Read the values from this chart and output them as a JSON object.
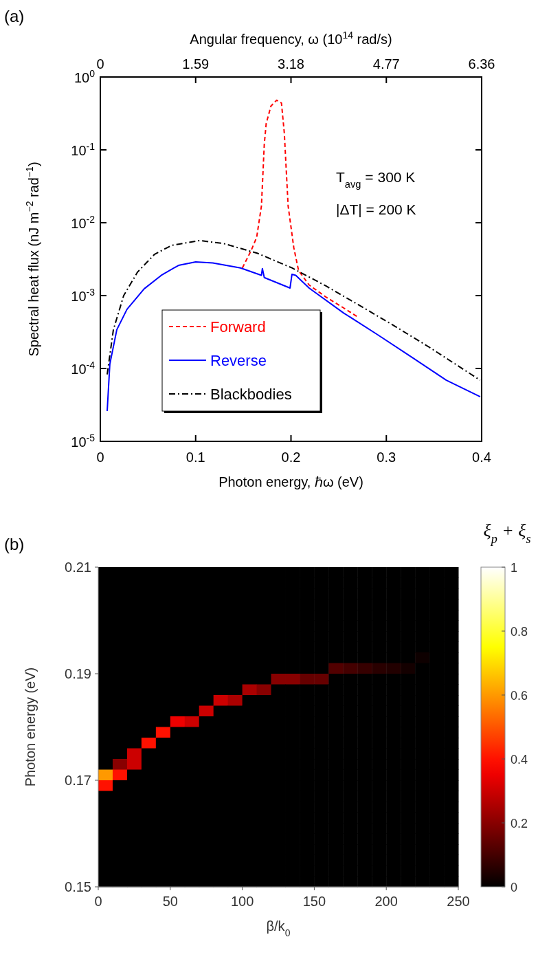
{
  "chart_data": [
    {
      "type": "line",
      "log": "y",
      "xlim": [
        0,
        0.4
      ],
      "xticks": [
        0,
        0.1,
        0.2,
        0.3,
        0.4
      ],
      "x2lim": [
        0,
        6.36
      ],
      "x2ticks": [
        0,
        1.59,
        3.18,
        4.77,
        6.36
      ],
      "ylim": [
        1e-05,
        1
      ],
      "yticks": [
        {
          "value": 1e-05,
          "label": "10$^{-5}$"
        },
        {
          "value": 0.0001,
          "label": "10$^{-4}$"
        },
        {
          "value": 0.001,
          "label": "10$^{-3}$"
        },
        {
          "value": 0.01,
          "label": "10$^{-2}$"
        },
        {
          "value": 0.1,
          "label": "10$^{-1}$"
        },
        {
          "value": 1,
          "label": "10$^{0}$"
        }
      ],
      "xlabel": "Photon energy, ℏω (eV)",
      "x2label": "Angular frequency, ω (10$^{14}$ rad/s)",
      "ylabel": "Spectral heat flux (nJ m$^{−2}$ rad$^{−1}$)",
      "legend": "bottom left",
      "annotations": [
        "(a)",
        "T$_{avg}$ = 300 K",
        "|ΔT| = 200 K"
      ],
      "series": [
        {
          "name": "Forward",
          "color": "#ff0000",
          "line_style": "dashed",
          "x": [
            0.149,
            0.158,
            0.164,
            0.169,
            0.172,
            0.174,
            0.179,
            0.185,
            0.19,
            0.193,
            0.197,
            0.203,
            0.208,
            0.219,
            0.237,
            0.255,
            0.27
          ],
          "values": [
            0.0024,
            0.0041,
            0.0063,
            0.017,
            0.12,
            0.23,
            0.4,
            0.48,
            0.44,
            0.17,
            0.017,
            0.0045,
            0.0022,
            0.0014,
            0.00095,
            0.00068,
            0.00051
          ]
        },
        {
          "name": "Reverse",
          "color": "#0000ff",
          "line_style": "solid",
          "x": [
            0.0072,
            0.01,
            0.0173,
            0.028,
            0.046,
            0.064,
            0.082,
            0.1,
            0.118,
            0.147,
            0.169,
            0.17,
            0.172,
            0.199,
            0.201,
            0.205,
            0.219,
            0.255,
            0.291,
            0.327,
            0.363,
            0.3985
          ],
          "values": [
            2.6e-05,
            0.000115,
            0.00034,
            0.00065,
            0.00124,
            0.0019,
            0.0026,
            0.0029,
            0.0028,
            0.0024,
            0.0019,
            0.00235,
            0.00177,
            0.00127,
            0.00196,
            0.0019,
            0.00127,
            0.00058,
            0.00029,
            0.000142,
            6.9e-05,
            4.1e-05
          ]
        },
        {
          "name": "Blackbodies",
          "color": "#000000",
          "line_style": "dashdot",
          "x": [
            0.0072,
            0.0137,
            0.0245,
            0.039,
            0.057,
            0.075,
            0.104,
            0.129,
            0.165,
            0.201,
            0.237,
            0.273,
            0.309,
            0.345,
            0.3985
          ],
          "values": [
            8.3e-05,
            0.00034,
            0.001,
            0.0021,
            0.0037,
            0.0049,
            0.0057,
            0.0052,
            0.0038,
            0.0024,
            0.00135,
            0.00072,
            0.00038,
            0.000196,
            6.9e-05
          ]
        }
      ]
    },
    {
      "type": "heatmap",
      "xlabel": "β/k$_{0}$",
      "ylabel": "Photon energy (eV)",
      "clabel": "ξ$_{p}$ + ξ$_{s}$",
      "annotations": [
        "(b)"
      ],
      "xlim": [
        0,
        250
      ],
      "xticks": [
        0,
        50,
        100,
        150,
        200,
        250
      ],
      "ylim": [
        0.15,
        0.21
      ],
      "yticks": [
        0.15,
        0.17,
        0.19,
        0.21
      ],
      "clim": [
        0,
        1
      ],
      "cticks": [
        0,
        0.2,
        0.4,
        0.6,
        0.8,
        1
      ],
      "x": [
        5,
        15,
        25,
        35,
        45,
        55,
        65,
        75,
        85,
        95,
        105,
        115,
        125,
        135,
        145,
        155,
        165,
        175,
        185,
        195,
        205,
        215,
        225,
        235,
        245
      ],
      "y": [
        0.209,
        0.207,
        0.205,
        0.203,
        0.201,
        0.199,
        0.197,
        0.195,
        0.193,
        0.191,
        0.189,
        0.187,
        0.185,
        0.183,
        0.181,
        0.179,
        0.177,
        0.175,
        0.173,
        0.171,
        0.169,
        0.167,
        0.165,
        0.163,
        0.161,
        0.159,
        0.157,
        0.155,
        0.153,
        0.151
      ],
      "cells": [
        [
          0,
          0,
          0,
          0,
          0,
          0,
          0,
          0,
          0,
          0,
          0,
          0,
          0,
          0,
          0,
          0,
          0,
          0,
          0,
          0,
          0,
          0,
          0,
          0,
          0
        ],
        [
          0,
          0,
          0,
          0,
          0,
          0,
          0,
          0,
          0,
          0,
          0,
          0,
          0,
          0,
          0,
          0,
          0,
          0,
          0,
          0,
          0,
          0,
          0,
          0,
          0
        ],
        [
          0,
          0,
          0,
          0,
          0,
          0,
          0,
          0,
          0,
          0,
          0,
          0,
          0,
          0,
          0,
          0,
          0,
          0,
          0,
          0,
          0,
          0,
          0,
          0,
          0
        ],
        [
          0,
          0,
          0,
          0,
          0,
          0,
          0,
          0,
          0,
          0,
          0,
          0,
          0,
          0,
          0,
          0,
          0,
          0,
          0,
          0,
          0,
          0,
          0,
          0,
          0
        ],
        [
          0,
          0,
          0,
          0,
          0,
          0,
          0,
          0,
          0,
          0,
          0,
          0,
          0,
          0,
          0,
          0,
          0,
          0,
          0,
          0,
          0,
          0,
          0,
          0,
          0
        ],
        [
          0,
          0,
          0,
          0,
          0,
          0,
          0,
          0,
          0,
          0,
          0,
          0,
          0,
          0,
          0,
          0,
          0,
          0,
          0,
          0,
          0,
          0,
          0,
          0,
          0
        ],
        [
          0,
          0,
          0,
          0,
          0,
          0,
          0,
          0,
          0,
          0,
          0,
          0,
          0,
          0,
          0,
          0,
          0,
          0,
          0,
          0,
          0,
          0,
          0,
          0,
          0
        ],
        [
          0,
          0,
          0,
          0,
          0,
          0,
          0,
          0,
          0,
          0,
          0,
          0,
          0,
          0,
          0,
          0,
          0,
          0,
          0,
          0,
          0,
          0,
          0,
          0,
          0
        ],
        [
          0,
          0,
          0,
          0,
          0,
          0,
          0,
          0,
          0,
          0,
          0,
          0,
          0,
          0,
          0,
          0,
          0,
          0,
          0,
          0,
          0,
          0,
          0.02,
          0,
          0
        ],
        [
          0,
          0,
          0,
          0,
          0,
          0,
          0,
          0,
          0,
          0,
          0,
          0,
          0,
          0,
          0,
          0,
          0.12,
          0.1,
          0.08,
          0.06,
          0.05,
          0.03,
          0,
          0,
          0
        ],
        [
          0,
          0,
          0,
          0,
          0,
          0,
          0,
          0,
          0,
          0,
          0,
          0,
          0.2,
          0.2,
          0.15,
          0.15,
          0,
          0,
          0,
          0,
          0,
          0,
          0,
          0,
          0
        ],
        [
          0,
          0,
          0,
          0,
          0,
          0,
          0,
          0,
          0,
          0,
          0.25,
          0.2,
          0,
          0,
          0,
          0,
          0,
          0,
          0,
          0,
          0,
          0,
          0,
          0,
          0
        ],
        [
          0,
          0,
          0,
          0,
          0,
          0,
          0,
          0,
          0.3,
          0.25,
          0,
          0,
          0,
          0,
          0,
          0,
          0,
          0,
          0,
          0,
          0,
          0,
          0,
          0,
          0
        ],
        [
          0,
          0,
          0,
          0,
          0,
          0,
          0,
          0.3,
          0,
          0,
          0,
          0,
          0,
          0,
          0,
          0,
          0,
          0,
          0,
          0,
          0,
          0,
          0,
          0,
          0
        ],
        [
          0,
          0,
          0,
          0,
          0,
          0.35,
          0.3,
          0,
          0,
          0,
          0,
          0,
          0,
          0,
          0,
          0,
          0,
          0,
          0,
          0,
          0,
          0,
          0,
          0,
          0
        ],
        [
          0,
          0,
          0,
          0,
          0.4,
          0,
          0,
          0,
          0,
          0,
          0,
          0,
          0,
          0,
          0,
          0,
          0,
          0,
          0,
          0,
          0,
          0,
          0,
          0,
          0
        ],
        [
          0,
          0,
          0,
          0.4,
          0,
          0,
          0,
          0,
          0,
          0,
          0,
          0,
          0,
          0,
          0,
          0,
          0,
          0,
          0,
          0,
          0,
          0,
          0,
          0,
          0
        ],
        [
          0,
          0,
          0.3,
          0,
          0,
          0,
          0,
          0,
          0,
          0,
          0,
          0,
          0,
          0,
          0,
          0,
          0,
          0,
          0,
          0,
          0,
          0,
          0,
          0,
          0
        ],
        [
          0,
          0.2,
          0.3,
          0,
          0,
          0,
          0,
          0,
          0,
          0,
          0,
          0,
          0,
          0,
          0,
          0,
          0,
          0,
          0,
          0,
          0,
          0,
          0,
          0,
          0
        ],
        [
          0.6,
          0.4,
          0,
          0,
          0,
          0,
          0,
          0,
          0,
          0,
          0,
          0,
          0,
          0,
          0,
          0,
          0,
          0,
          0,
          0,
          0,
          0,
          0,
          0,
          0
        ],
        [
          0.4,
          0,
          0,
          0,
          0,
          0,
          0,
          0,
          0,
          0,
          0,
          0,
          0,
          0,
          0,
          0,
          0,
          0,
          0,
          0,
          0,
          0,
          0,
          0,
          0
        ],
        [
          0,
          0,
          0,
          0,
          0,
          0,
          0,
          0,
          0,
          0,
          0,
          0,
          0,
          0,
          0,
          0,
          0,
          0,
          0,
          0,
          0,
          0,
          0,
          0,
          0
        ],
        [
          0,
          0,
          0,
          0,
          0,
          0,
          0,
          0,
          0,
          0,
          0,
          0,
          0,
          0,
          0,
          0,
          0,
          0,
          0,
          0,
          0,
          0,
          0,
          0,
          0
        ],
        [
          0,
          0,
          0,
          0,
          0,
          0,
          0,
          0,
          0,
          0,
          0,
          0,
          0,
          0,
          0,
          0,
          0,
          0,
          0,
          0,
          0,
          0,
          0,
          0,
          0
        ],
        [
          0,
          0,
          0,
          0,
          0,
          0,
          0,
          0,
          0,
          0,
          0,
          0,
          0,
          0,
          0,
          0,
          0,
          0,
          0,
          0,
          0,
          0,
          0,
          0,
          0
        ],
        [
          0,
          0,
          0,
          0,
          0,
          0,
          0,
          0,
          0,
          0,
          0,
          0,
          0,
          0,
          0,
          0,
          0,
          0,
          0,
          0,
          0,
          0,
          0,
          0,
          0
        ],
        [
          0,
          0,
          0,
          0,
          0,
          0,
          0,
          0,
          0,
          0,
          0,
          0,
          0,
          0,
          0,
          0,
          0,
          0,
          0,
          0,
          0,
          0,
          0,
          0,
          0
        ],
        [
          0,
          0,
          0,
          0,
          0,
          0,
          0,
          0,
          0,
          0,
          0,
          0,
          0,
          0,
          0,
          0,
          0,
          0,
          0,
          0,
          0,
          0,
          0,
          0,
          0
        ],
        [
          0,
          0,
          0,
          0,
          0,
          0,
          0,
          0,
          0,
          0,
          0,
          0,
          0,
          0,
          0,
          0,
          0,
          0,
          0,
          0,
          0,
          0,
          0,
          0,
          0
        ],
        [
          0,
          0,
          0,
          0,
          0,
          0,
          0,
          0,
          0,
          0,
          0,
          0,
          0,
          0,
          0,
          0,
          0,
          0,
          0,
          0,
          0,
          0,
          0,
          0,
          0
        ]
      ]
    }
  ]
}
